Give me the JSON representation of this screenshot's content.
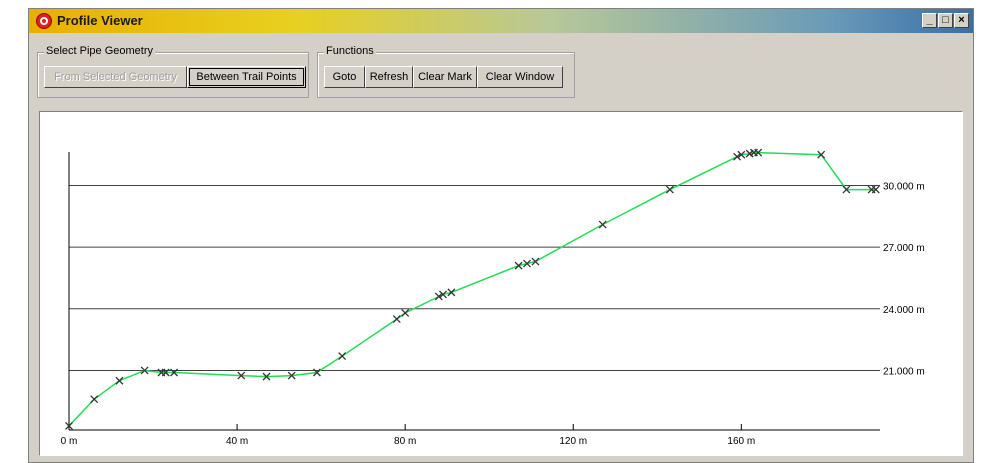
{
  "window": {
    "title": "Profile Viewer",
    "controls": [
      "_",
      "□",
      "×"
    ],
    "accent": "#e8b000"
  },
  "geometry_group": {
    "label": "Select Pipe Geometry",
    "buttons": [
      {
        "label": "From Selected Geometry",
        "enabled": false
      },
      {
        "label": "Between Trail Points",
        "enabled": true
      }
    ]
  },
  "functions_group": {
    "label": "Functions",
    "buttons": [
      {
        "label": "Goto"
      },
      {
        "label": "Refresh"
      },
      {
        "label": "Clear Mark"
      },
      {
        "label": "Clear Window"
      }
    ]
  },
  "chart_data": {
    "type": "line",
    "line_color": "#22dd55",
    "marker": "x",
    "x_ticks": [
      "0 m",
      "40 m",
      "80 m",
      "120 m",
      "160 m"
    ],
    "x_tick_values": [
      0,
      40,
      80,
      120,
      160
    ],
    "y_labels": [
      "30.000 m",
      "27.000 m",
      "24.000 m",
      "21.000 m"
    ],
    "y_label_values": [
      30,
      27,
      24,
      21
    ],
    "xlim": [
      0,
      193
    ],
    "ylim": [
      18.2,
      32.7
    ],
    "grid": "horizontal",
    "points": [
      [
        0,
        18.3
      ],
      [
        6,
        19.6
      ],
      [
        12,
        20.5
      ],
      [
        18,
        21.0
      ],
      [
        22,
        20.9
      ],
      [
        23,
        20.9
      ],
      [
        25,
        20.9
      ],
      [
        41,
        20.75
      ],
      [
        47,
        20.7
      ],
      [
        53,
        20.75
      ],
      [
        59,
        20.9
      ],
      [
        65,
        21.7
      ],
      [
        78,
        23.5
      ],
      [
        80,
        23.8
      ],
      [
        88,
        24.6
      ],
      [
        89,
        24.7
      ],
      [
        91,
        24.8
      ],
      [
        107,
        26.1
      ],
      [
        109,
        26.2
      ],
      [
        111,
        26.3
      ],
      [
        127,
        28.1
      ],
      [
        143,
        29.8
      ],
      [
        159,
        31.4
      ],
      [
        160,
        31.5
      ],
      [
        162,
        31.55
      ],
      [
        163,
        31.6
      ],
      [
        164,
        31.6
      ],
      [
        179,
        31.5
      ],
      [
        185,
        29.8
      ],
      [
        191,
        29.8
      ],
      [
        192,
        29.8
      ]
    ]
  }
}
